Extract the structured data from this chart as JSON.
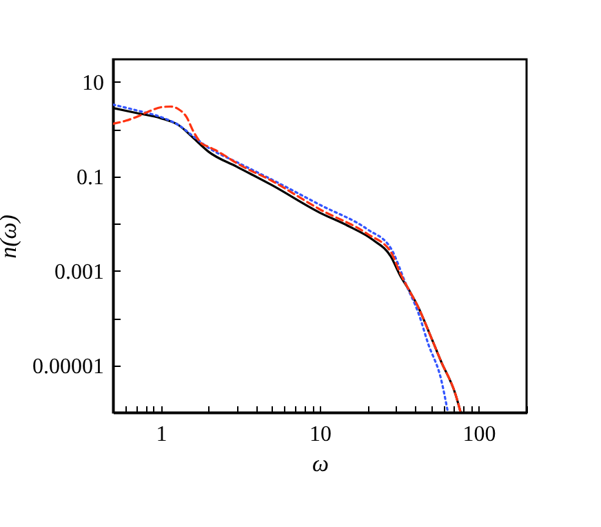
{
  "chart_data": {
    "type": "line",
    "xlabel": "ω",
    "ylabel": "n(ω)",
    "log": "xy",
    "grid": false,
    "marker": "none",
    "xlim": [
      0.5,
      200
    ],
    "ylim": [
      1e-06,
      30
    ],
    "xticks": [
      {
        "value": 0.5,
        "label": null
      },
      {
        "value": 0.6,
        "label": null
      },
      {
        "value": 0.7,
        "label": null
      },
      {
        "value": 0.8,
        "label": null
      },
      {
        "value": 0.9,
        "label": null
      },
      1,
      {
        "value": 2,
        "label": null
      },
      {
        "value": 3,
        "label": null
      },
      {
        "value": 4,
        "label": null
      },
      {
        "value": 5,
        "label": null
      },
      {
        "value": 6,
        "label": null
      },
      {
        "value": 7,
        "label": null
      },
      {
        "value": 8,
        "label": null
      },
      {
        "value": 9,
        "label": null
      },
      10,
      {
        "value": 20,
        "label": null
      },
      {
        "value": 30,
        "label": null
      },
      {
        "value": 40,
        "label": null
      },
      {
        "value": 50,
        "label": null
      },
      {
        "value": 60,
        "label": null
      },
      {
        "value": 70,
        "label": null
      },
      {
        "value": 80,
        "label": null
      },
      {
        "value": 90,
        "label": null
      },
      100,
      {
        "value": 200,
        "label": null
      }
    ],
    "yticks": [
      {
        "value": 1e-06,
        "label": null
      },
      {
        "value": 1e-05,
        "label": "0.00001"
      },
      {
        "value": 0.0001,
        "label": null
      },
      0.001,
      {
        "value": 0.01,
        "label": null
      },
      0.1,
      {
        "value": 1,
        "label": null
      },
      10
    ],
    "series": [
      {
        "color": "#000000",
        "line_style": "solid",
        "x": [
          0.5,
          0.7,
          1,
          1.3,
          1.6,
          2,
          3,
          5,
          10,
          15,
          21.6,
          28,
          32,
          36.6,
          42,
          48,
          58,
          71.5,
          77
        ],
        "values": [
          2.8,
          2.2,
          1.7,
          1.2,
          0.65,
          0.33,
          0.16,
          0.065,
          0.017,
          0.009,
          0.0045,
          0.002,
          0.0008,
          0.00038,
          0.00016,
          5.6e-05,
          1.2e-05,
          2.4e-06,
          1e-06
        ]
      },
      {
        "color": "#3355ff",
        "line_style": "dotted",
        "x": [
          0.5,
          0.7,
          1,
          1.3,
          1.6,
          2,
          3,
          5,
          10,
          20,
          28,
          35,
          42,
          48,
          58,
          64
        ],
        "values": [
          3.3,
          2.5,
          1.8,
          1.2,
          0.7,
          0.4,
          0.2,
          0.085,
          0.025,
          0.0075,
          0.003,
          0.0005,
          0.00012,
          2.9e-05,
          5e-06,
          1e-06
        ]
      },
      {
        "color": "#ff3311",
        "line_style": "dashed",
        "x": [
          0.5,
          0.6,
          0.7,
          0.85,
          1,
          1.15,
          1.3,
          1.45,
          1.6,
          1.8,
          2,
          2.2,
          2.5,
          3,
          5,
          10,
          20,
          28,
          32,
          36.6,
          42,
          48,
          58,
          71.5,
          77
        ],
        "values": [
          1.3,
          1.5,
          1.8,
          2.4,
          2.9,
          3.0,
          2.6,
          1.8,
          0.9,
          0.5,
          0.42,
          0.36,
          0.28,
          0.19,
          0.08,
          0.02,
          0.006,
          0.0025,
          0.0009,
          0.00038,
          0.00016,
          5.6e-05,
          1.2e-05,
          2.4e-06,
          1e-06
        ]
      }
    ]
  }
}
